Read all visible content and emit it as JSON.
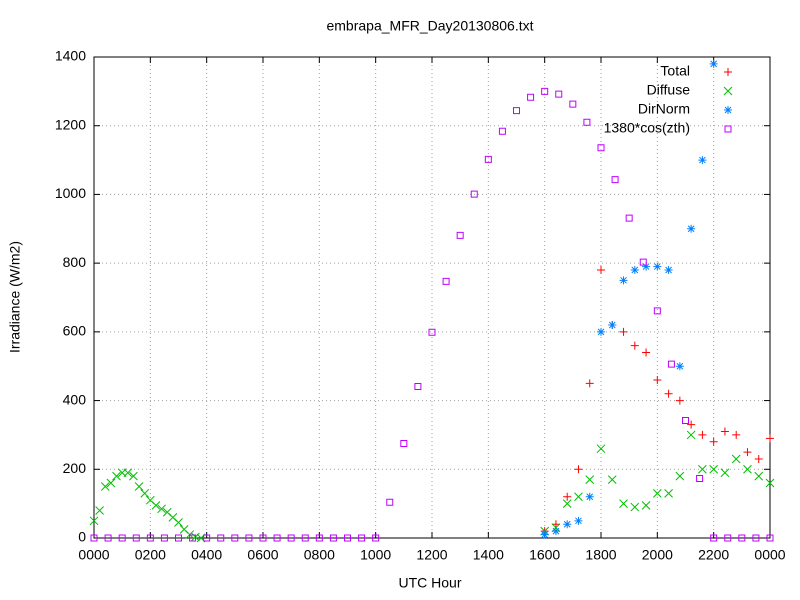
{
  "chart_data": {
    "type": "scatter",
    "title": "embrapa_MFR_Day20130806.txt",
    "x_label": "UTC Hour",
    "y_label": "Irradiance (W/m2)",
    "xlim": [
      0,
      24
    ],
    "ylim": [
      0,
      1400
    ],
    "xticks": [
      {
        "value": 0,
        "label": "0000"
      },
      {
        "value": 2,
        "label": "0200"
      },
      {
        "value": 4,
        "label": "0400"
      },
      {
        "value": 6,
        "label": "0600"
      },
      {
        "value": 8,
        "label": "0800"
      },
      {
        "value": 10,
        "label": "1000"
      },
      {
        "value": 12,
        "label": "1200"
      },
      {
        "value": 14,
        "label": "1400"
      },
      {
        "value": 16,
        "label": "1600"
      },
      {
        "value": 18,
        "label": "1800"
      },
      {
        "value": 20,
        "label": "2000"
      },
      {
        "value": 22,
        "label": "2200"
      },
      {
        "value": 24,
        "label": "0000"
      }
    ],
    "yticks": [
      0,
      200,
      400,
      600,
      800,
      1000,
      1200,
      1400
    ],
    "grid": true,
    "legend": "top-right",
    "series": [
      {
        "name": "Total",
        "color": "#ff0000",
        "marker": "plus",
        "x": [
          16,
          16.4,
          16.8,
          17.2,
          17.6,
          18,
          18.4,
          18.8,
          19.2,
          19.6,
          20,
          20.4,
          20.8,
          21.2,
          21.6,
          22,
          22.4,
          22.8,
          23.2,
          23.6,
          24
        ],
        "values": [
          20,
          40,
          120,
          200,
          450,
          780,
          620,
          600,
          560,
          540,
          460,
          420,
          400,
          330,
          300,
          280,
          310,
          300,
          250,
          230,
          290
        ]
      },
      {
        "name": "Diffuse",
        "color": "#00c000",
        "marker": "cross",
        "x": [
          0,
          0.2,
          0.4,
          0.6,
          0.8,
          1,
          1.2,
          1.4,
          1.6,
          1.8,
          2,
          2.2,
          2.4,
          2.6,
          2.8,
          3,
          3.2,
          3.4,
          3.6,
          3.8,
          16,
          16.4,
          16.8,
          17.2,
          17.6,
          18,
          18.4,
          18.8,
          19.2,
          19.6,
          20,
          20.4,
          20.8,
          21.2,
          21.6,
          22,
          22.4,
          22.8,
          23.2,
          23.6,
          24
        ],
        "values": [
          50,
          80,
          150,
          160,
          180,
          190,
          190,
          180,
          150,
          130,
          110,
          95,
          85,
          75,
          60,
          45,
          25,
          10,
          3,
          0,
          20,
          30,
          100,
          120,
          170,
          260,
          170,
          100,
          90,
          95,
          130,
          130,
          180,
          300,
          200,
          200,
          190,
          230,
          200,
          180,
          160
        ]
      },
      {
        "name": "DirNorm",
        "color": "#0080ff",
        "marker": "star",
        "x": [
          16,
          16.4,
          16.8,
          17.2,
          17.6,
          18,
          18.4,
          18.8,
          19.2,
          19.6,
          20,
          20.4,
          20.8,
          21.2,
          21.6,
          22
        ],
        "values": [
          10,
          20,
          40,
          50,
          120,
          600,
          620,
          750,
          780,
          790,
          790,
          780,
          500,
          900,
          1100,
          1380
        ]
      },
      {
        "name": "1380*cos(zth)",
        "color": "#c000ff",
        "marker": "square",
        "x": [
          0,
          0.5,
          1,
          1.5,
          2,
          2.5,
          3,
          3.5,
          4,
          4.5,
          5,
          5.5,
          6,
          6.5,
          7,
          7.5,
          8,
          8.5,
          9,
          9.5,
          10,
          10.5,
          11,
          11.5,
          12,
          12.5,
          13,
          13.5,
          14,
          14.5,
          15,
          15.5,
          16,
          16.5,
          17,
          17.5,
          18,
          18.5,
          19,
          19.5,
          20,
          20.5,
          21,
          21.5,
          22,
          22.5,
          23,
          23.5,
          24
        ],
        "values": [
          0,
          0,
          0,
          0,
          0,
          0,
          0,
          0,
          0,
          0,
          0,
          0,
          0,
          0,
          0,
          0,
          0,
          0,
          0,
          0,
          0,
          104,
          275,
          441,
          599,
          747,
          881,
          1001,
          1102,
          1184,
          1244,
          1283,
          1300,
          1292,
          1263,
          1210,
          1136,
          1043,
          931,
          803,
          661,
          506,
          342,
          173,
          0,
          0,
          0,
          0,
          0
        ]
      }
    ]
  }
}
